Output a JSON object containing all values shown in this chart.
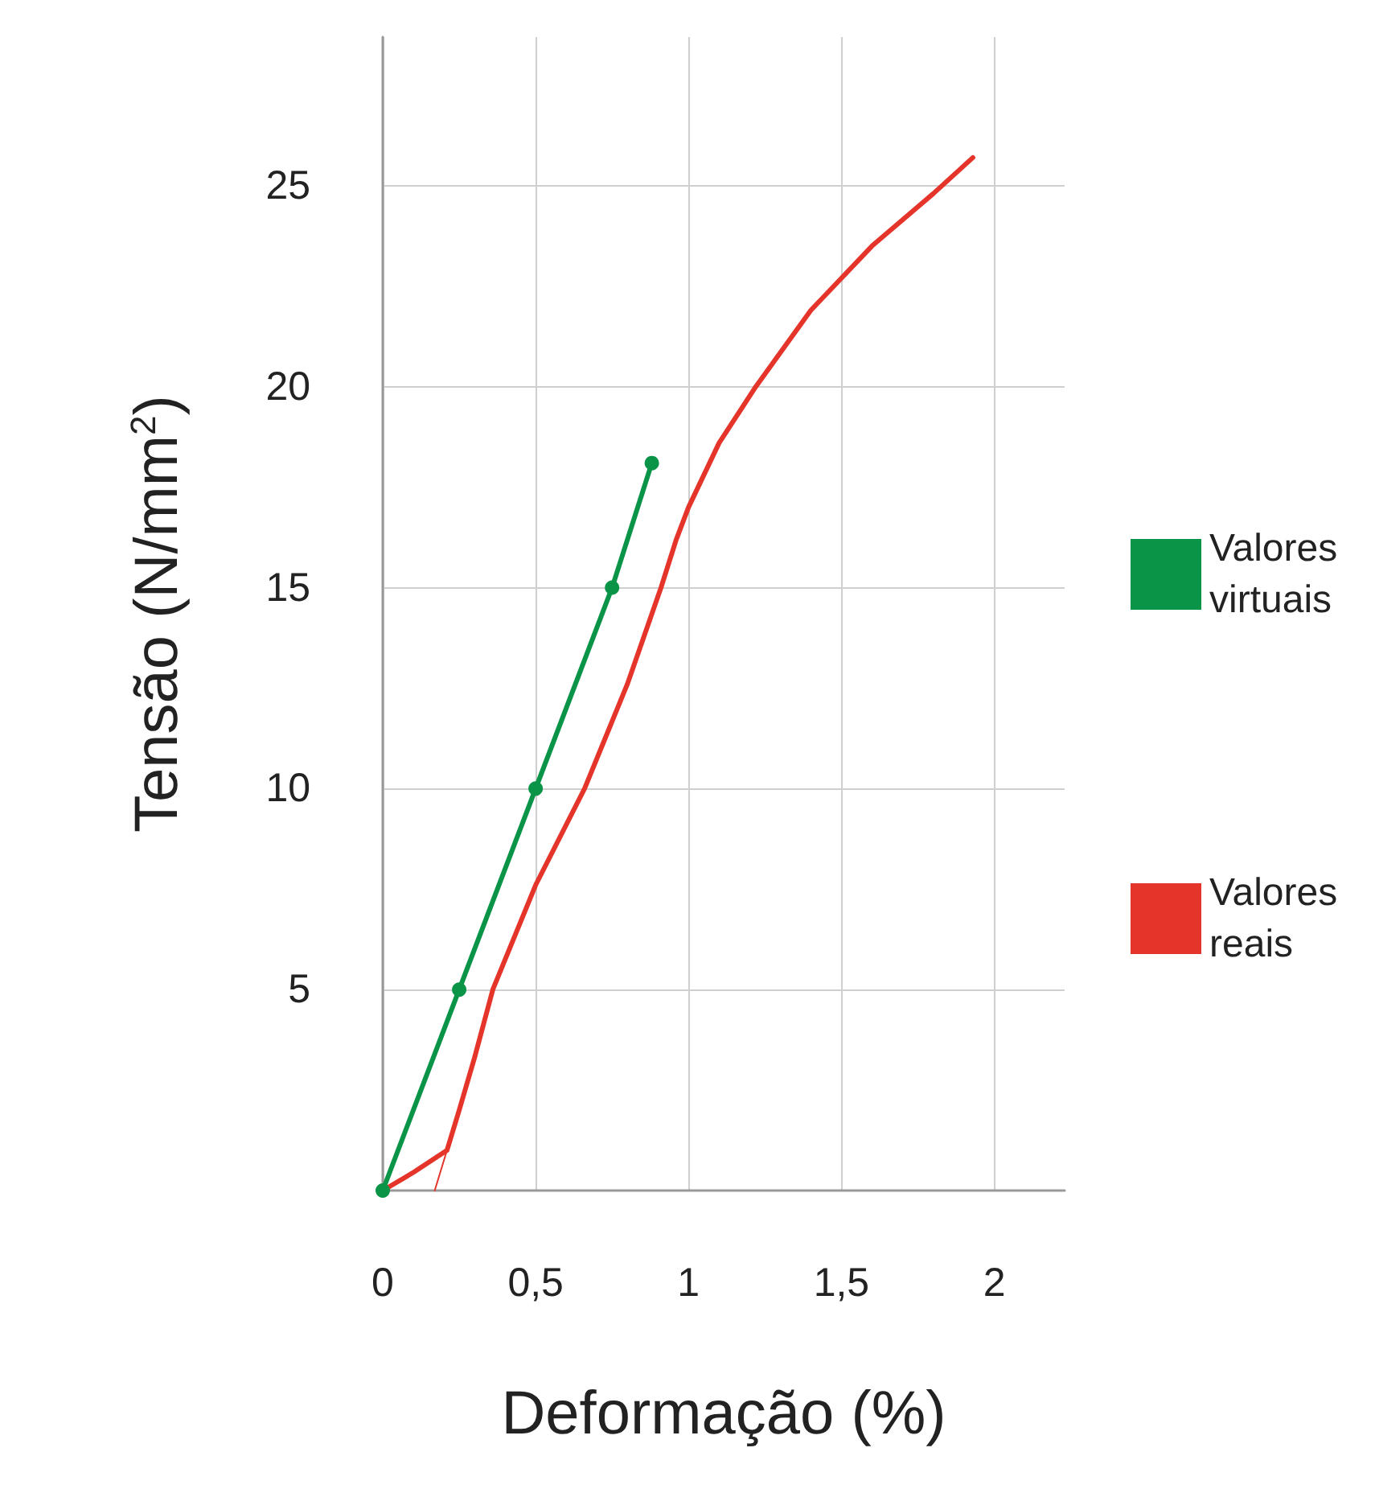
{
  "chart_data": {
    "type": "line",
    "xlabel": "Deformação (%)",
    "ylabel": "Tensão (N/mm$^{2}$)",
    "xlim": [
      0,
      2.23
    ],
    "ylim": [
      0,
      28.7
    ],
    "xticks": [
      0,
      {
        "value": 0.5,
        "label": "0,5"
      },
      1,
      {
        "value": 1.5,
        "label": "1,5"
      },
      2
    ],
    "yticks": [
      5,
      10,
      15,
      20,
      25
    ],
    "grid": true,
    "legend": "right",
    "series": [
      {
        "name": "Valores virtuais",
        "color": "#0a9447",
        "marker": "circle",
        "x": [
          0,
          0.25,
          0.5,
          0.75,
          0.88
        ],
        "values": [
          0,
          5,
          10,
          15,
          18.1
        ]
      },
      {
        "name": "Valores reais",
        "color": "#e5352b",
        "marker": "none",
        "x": [
          0,
          0.1,
          0.21,
          0.25,
          0.3,
          0.36,
          0.5,
          0.66,
          0.8,
          0.91,
          0.96,
          1.0,
          1.1,
          1.22,
          1.4,
          1.6,
          1.8,
          1.93
        ],
        "values": [
          0,
          0.45,
          1.0,
          2.0,
          3.3,
          5,
          7.6,
          10,
          12.6,
          15,
          16.2,
          17.0,
          18.6,
          20,
          21.9,
          23.5,
          24.8,
          25.7
        ]
      },
      {
        "color": "#e5352b",
        "marker": "none",
        "x": [
          0.17,
          0.21
        ],
        "values": [
          0,
          1.0
        ]
      }
    ]
  }
}
